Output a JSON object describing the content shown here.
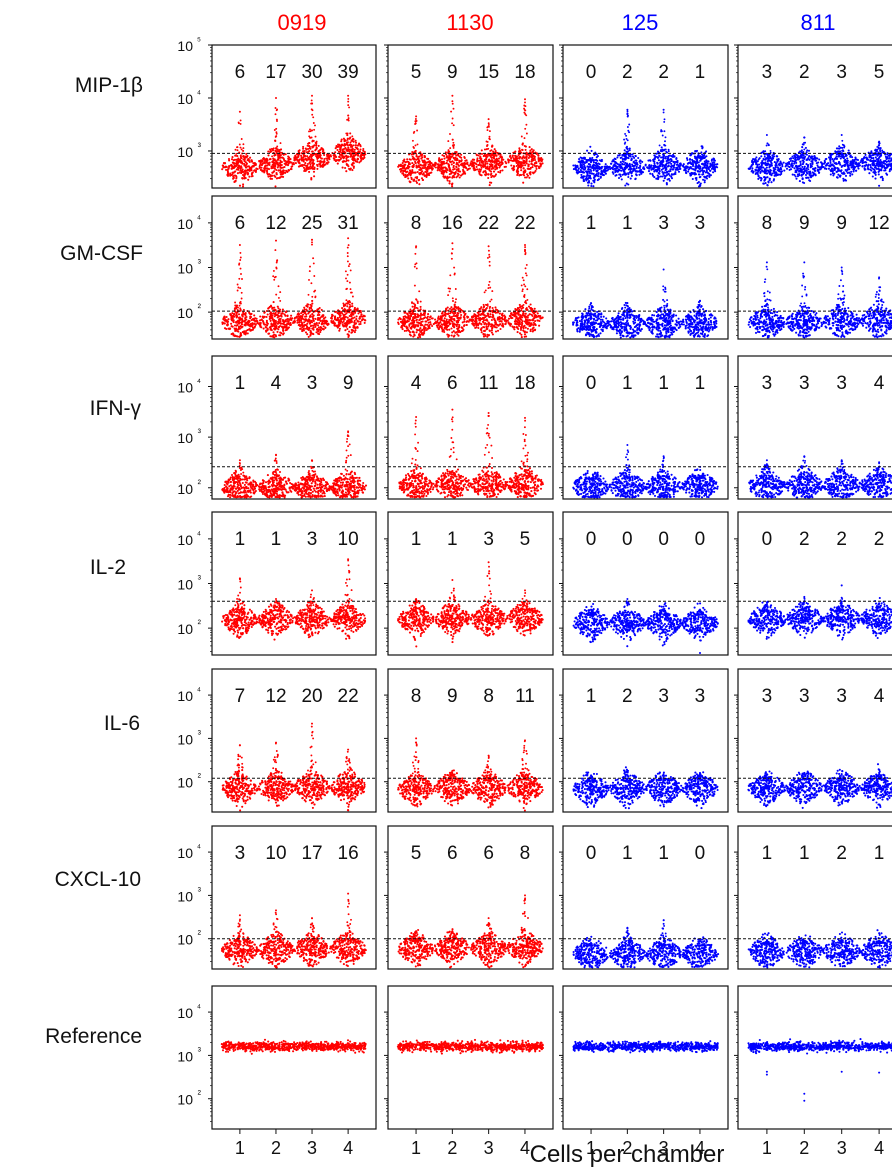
{
  "chart_data": {
    "type": "scatter",
    "subtype": "beeswarm-grid",
    "title": "",
    "xlabel": "Cells per chamber",
    "x_categories": [
      "1",
      "2",
      "3",
      "4"
    ],
    "y_scale": "log",
    "y_tick_labels": [
      "10⁵",
      "10⁴",
      "10³",
      "10²"
    ],
    "samples": [
      {
        "name": "0919",
        "color": "#ff0000"
      },
      {
        "name": "1130",
        "color": "#ff0000"
      },
      {
        "name": "125",
        "color": "#0000ff"
      },
      {
        "name": "811",
        "color": "#0000ff"
      }
    ],
    "rows": [
      {
        "name": "MIP-1β",
        "ylim": [
          200,
          100000
        ],
        "ticks": [
          100000,
          10000,
          1000
        ],
        "threshold": 900,
        "counts": [
          [
            6,
            17,
            30,
            39
          ],
          [
            5,
            9,
            15,
            18
          ],
          [
            0,
            2,
            2,
            1
          ],
          [
            3,
            2,
            3,
            5
          ]
        ],
        "cluster_center": [
          [
            480,
            560,
            720,
            900
          ],
          [
            480,
            520,
            580,
            620
          ],
          [
            480,
            500,
            520,
            520
          ],
          [
            500,
            520,
            560,
            600
          ]
        ],
        "max_value": [
          [
            5500,
            10000,
            11000,
            11000
          ],
          [
            4500,
            11000,
            4000,
            9500
          ],
          [
            650,
            6000,
            6000,
            800
          ],
          [
            2000,
            1800,
            2000,
            1500
          ]
        ]
      },
      {
        "name": "GM-CSF",
        "ylim": [
          25,
          40000
        ],
        "ticks": [
          10000,
          1000,
          100
        ],
        "threshold": 105,
        "counts": [
          [
            6,
            12,
            25,
            31
          ],
          [
            8,
            16,
            22,
            22
          ],
          [
            1,
            1,
            3,
            3
          ],
          [
            8,
            9,
            9,
            12
          ]
        ],
        "cluster_center": [
          [
            60,
            62,
            65,
            70
          ],
          [
            60,
            62,
            65,
            68
          ],
          [
            55,
            55,
            55,
            55
          ],
          [
            58,
            60,
            62,
            65
          ]
        ],
        "max_value": [
          [
            3200,
            4000,
            4200,
            4500
          ],
          [
            3000,
            3500,
            3000,
            3200
          ],
          [
            160,
            160,
            900,
            180
          ],
          [
            1300,
            1300,
            1000,
            600
          ]
        ]
      },
      {
        "name": "IFN-γ",
        "ylim": [
          60,
          40000
        ],
        "ticks": [
          10000,
          1000,
          100
        ],
        "threshold": 260,
        "counts": [
          [
            1,
            4,
            3,
            9
          ],
          [
            4,
            6,
            11,
            18
          ],
          [
            0,
            1,
            1,
            1
          ],
          [
            3,
            3,
            3,
            4
          ]
        ],
        "cluster_center": [
          [
            100,
            102,
            100,
            105
          ],
          [
            110,
            115,
            115,
            118
          ],
          [
            105,
            105,
            105,
            108
          ],
          [
            110,
            112,
            112,
            115
          ]
        ],
        "max_value": [
          [
            350,
            450,
            350,
            1300
          ],
          [
            2500,
            3500,
            3000,
            2400
          ],
          [
            150,
            700,
            420,
            170
          ],
          [
            350,
            420,
            350,
            320
          ]
        ]
      },
      {
        "name": "IL-2",
        "ylim": [
          25,
          40000
        ],
        "ticks": [
          10000,
          1000,
          100
        ],
        "threshold": 400,
        "counts": [
          [
            1,
            1,
            3,
            10
          ],
          [
            1,
            1,
            3,
            5
          ],
          [
            0,
            0,
            0,
            0
          ],
          [
            0,
            2,
            2,
            2
          ]
        ],
        "cluster_center": [
          [
            150,
            155,
            155,
            160
          ],
          [
            155,
            160,
            160,
            165
          ],
          [
            130,
            130,
            130,
            130
          ],
          [
            155,
            160,
            160,
            165
          ]
        ],
        "max_value": [
          [
            1300,
            450,
            700,
            3500
          ],
          [
            450,
            1200,
            3000,
            700
          ],
          [
            260,
            450,
            300,
            260
          ],
          [
            380,
            500,
            480,
            360
          ]
        ]
      },
      {
        "name": "IL-6",
        "ylim": [
          20,
          40000
        ],
        "ticks": [
          10000,
          1000,
          100
        ],
        "threshold": 120,
        "counts": [
          [
            7,
            12,
            20,
            22
          ],
          [
            8,
            9,
            8,
            11
          ],
          [
            1,
            2,
            3,
            3
          ],
          [
            3,
            3,
            3,
            4
          ]
        ],
        "cluster_center": [
          [
            70,
            72,
            75,
            75
          ],
          [
            68,
            70,
            70,
            72
          ],
          [
            68,
            70,
            70,
            70
          ],
          [
            70,
            72,
            72,
            72
          ]
        ],
        "max_value": [
          [
            700,
            800,
            2200,
            550
          ],
          [
            1000,
            180,
            400,
            900
          ],
          [
            140,
            180,
            150,
            160
          ],
          [
            150,
            160,
            150,
            160
          ]
        ]
      },
      {
        "name": "CXCL-10",
        "ylim": [
          20,
          40000
        ],
        "ticks": [
          10000,
          1000,
          100
        ],
        "threshold": 100,
        "counts": [
          [
            3,
            10,
            17,
            16
          ],
          [
            5,
            6,
            6,
            8
          ],
          [
            0,
            1,
            1,
            0
          ],
          [
            1,
            1,
            2,
            1
          ]
        ],
        "cluster_center": [
          [
            55,
            55,
            58,
            58
          ],
          [
            58,
            60,
            60,
            62
          ],
          [
            45,
            45,
            45,
            45
          ],
          [
            50,
            50,
            52,
            52
          ]
        ],
        "max_value": [
          [
            350,
            450,
            300,
            1100
          ],
          [
            150,
            150,
            300,
            1000
          ],
          [
            80,
            180,
            220,
            90
          ],
          [
            90,
            90,
            95,
            90
          ]
        ]
      },
      {
        "name": "Reference",
        "ylim": [
          20,
          40000
        ],
        "ticks": [
          10000,
          1000,
          100
        ],
        "threshold": null,
        "counts": null,
        "cluster_center": [
          [
            1600,
            1600,
            1600,
            1600
          ],
          [
            1600,
            1600,
            1600,
            1600
          ],
          [
            1600,
            1600,
            1600,
            1600
          ],
          [
            1600,
            1600,
            1600,
            1600
          ]
        ],
        "max_value": [
          [
            1800,
            1800,
            1800,
            1800
          ],
          [
            1800,
            1800,
            1800,
            1800
          ],
          [
            1800,
            1800,
            1800,
            1800
          ],
          [
            1800,
            1800,
            1800,
            1800
          ]
        ]
      }
    ],
    "grid": false,
    "legend": "none"
  }
}
